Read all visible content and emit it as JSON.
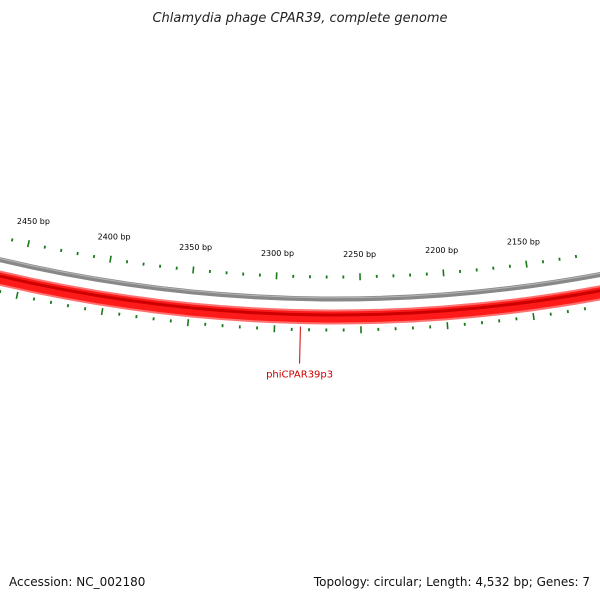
{
  "title": "Chlamydia phage CPAR39, complete genome",
  "footer": {
    "accession": "Accession: NC_002180",
    "summary": "Topology: circular; Length: 4,532 bp; Genes: 7"
  },
  "genome": {
    "length_bp": 4532,
    "visible_range_bp": [
      2120,
      2470
    ],
    "tick_interval_bp": 10,
    "label_interval_bp": 50,
    "tick_labels": [
      "2450 bp",
      "2400 bp",
      "2350 bp",
      "2300 bp",
      "2250 bp",
      "2200 bp",
      "2150 bp"
    ]
  },
  "genes": [
    {
      "name": "phiCPAR39p3",
      "strand": "reverse",
      "label_position_bp": 2285
    }
  ],
  "colors": {
    "backbone": "#888888",
    "gene_fill": "#ff1a1a",
    "gene_edge": "#ff7070",
    "gene_dark": "#cc0000",
    "tick": "#1a7a1a",
    "gene_label": "#cc0000"
  }
}
